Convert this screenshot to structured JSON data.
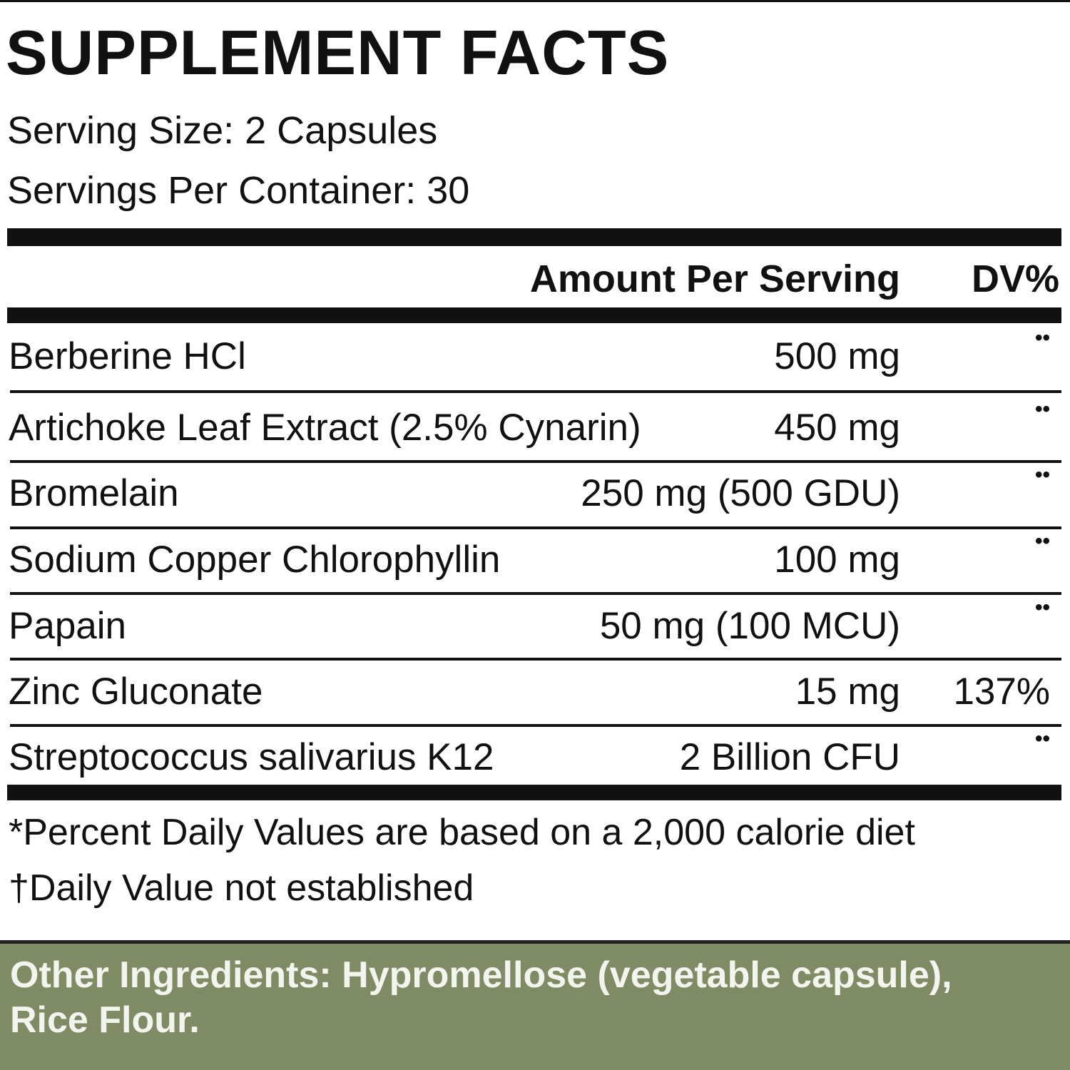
{
  "title": "SUPPLEMENT FACTS",
  "serving_size": "Serving Size: 2 Capsules",
  "servings_per_container": "Servings Per Container: 30",
  "table": {
    "header": {
      "amount": "Amount Per Serving",
      "dv": "DV%"
    },
    "rows": [
      {
        "name": "Berberine HCl",
        "amount": "500 mg",
        "dv": "••"
      },
      {
        "name": "Artichoke Leaf Extract (2.5% Cynarin)",
        "amount": "450 mg",
        "dv": "••"
      },
      {
        "name": "Bromelain",
        "amount": "250 mg (500 GDU)",
        "dv": "••"
      },
      {
        "name": "Sodium Copper Chlorophyllin",
        "amount": "100 mg",
        "dv": "••"
      },
      {
        "name": "Papain",
        "amount": "50 mg (100 MCU)",
        "dv": "••"
      },
      {
        "name": "Zinc Gluconate",
        "amount": "15 mg",
        "dv": "137%"
      },
      {
        "name": "Streptococcus salivarius K12",
        "amount": "2 Billion CFU",
        "dv": "••"
      }
    ]
  },
  "footnotes": [
    "*Percent Daily Values are based on a 2,000 calorie diet",
    "†Daily Value not established"
  ],
  "other_ingredients": [
    "Other Ingredients: Hypromellose (vegetable capsule),",
    "Rice Flour."
  ]
}
